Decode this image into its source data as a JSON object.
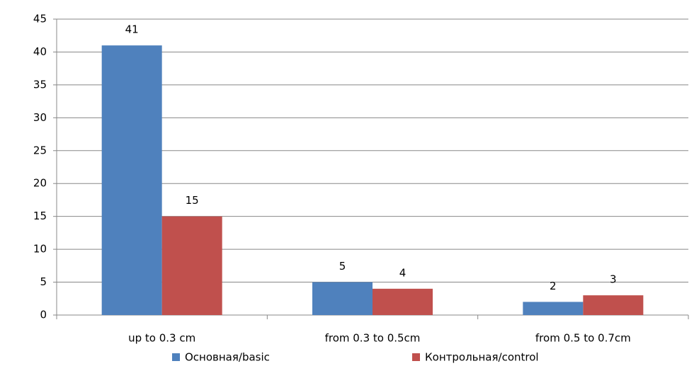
{
  "chart_data": {
    "type": "bar",
    "categories": [
      "up to 0.3 cm",
      "from 0.3 to 0.5cm",
      "from 0.5 to 0.7cm"
    ],
    "series": [
      {
        "name": "Основная/basic",
        "color": "#4f81bd",
        "values": [
          41,
          5,
          2
        ]
      },
      {
        "name": "Контрольная/control",
        "color": "#c0504d",
        "values": [
          15,
          4,
          3
        ]
      }
    ],
    "ylim": [
      0,
      45
    ],
    "yticks": [
      0,
      5,
      10,
      15,
      20,
      25,
      30,
      35,
      40,
      45
    ],
    "grid": true,
    "legend": "bottom",
    "data_labels": true
  }
}
